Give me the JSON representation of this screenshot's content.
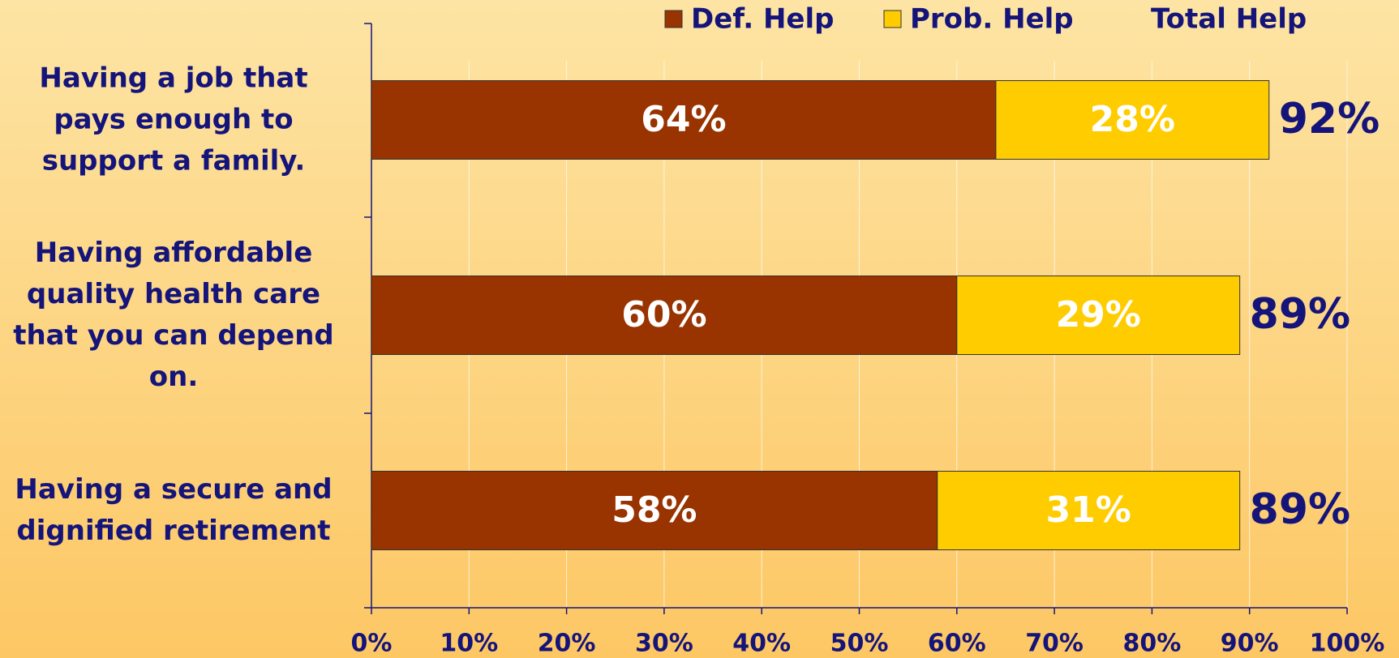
{
  "chart_data": {
    "type": "stacked_hbar",
    "categories": [
      "Having a job that pays enough to support a family.",
      "Having affordable quality health care that you can depend on.",
      "Having a secure and dignified retirement"
    ],
    "series": [
      {
        "name": "Def. Help",
        "color": "#993300",
        "values": [
          64,
          60,
          58
        ],
        "value_labels": [
          "64%",
          "60%",
          "58%"
        ]
      },
      {
        "name": "Prob. Help",
        "color": "#ffcc00",
        "values": [
          28,
          29,
          31
        ],
        "value_labels": [
          "28%",
          "29%",
          "31%"
        ]
      }
    ],
    "totals": {
      "name": "Total Help",
      "values": [
        92,
        89,
        89
      ],
      "value_labels": [
        "92%",
        "89%",
        "89%"
      ]
    },
    "xlim": [
      0,
      100
    ],
    "xticks": [
      {
        "value": 0,
        "label": "0%"
      },
      {
        "value": 10,
        "label": "10%"
      },
      {
        "value": 20,
        "label": "20%"
      },
      {
        "value": 30,
        "label": "30%"
      },
      {
        "value": 40,
        "label": "40%"
      },
      {
        "value": 50,
        "label": "50%"
      },
      {
        "value": 60,
        "label": "60%"
      },
      {
        "value": 70,
        "label": "70%"
      },
      {
        "value": 80,
        "label": "80%"
      },
      {
        "value": 90,
        "label": "90%"
      },
      {
        "value": 100,
        "label": "100%"
      }
    ],
    "grid": true,
    "legend": "top"
  }
}
